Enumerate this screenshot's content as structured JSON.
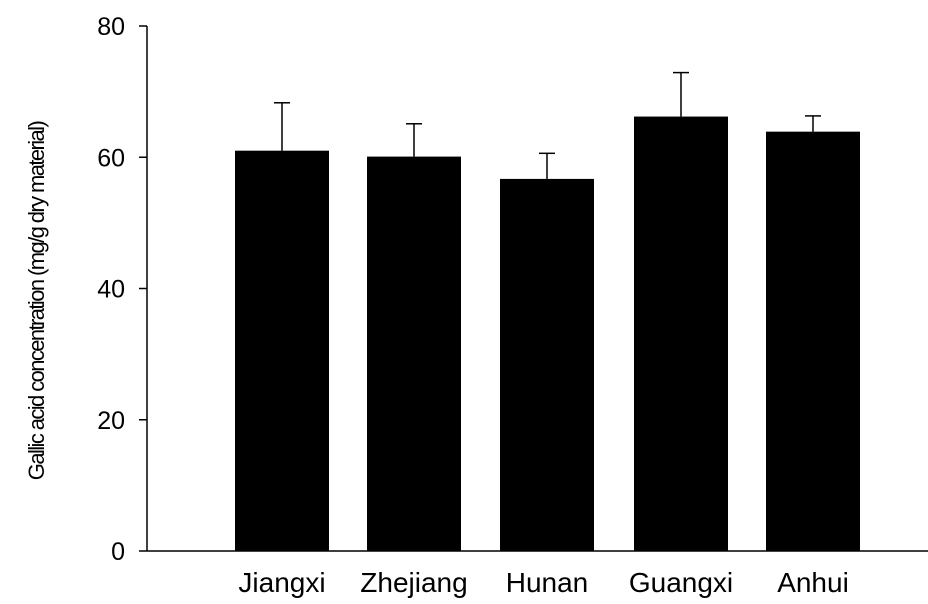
{
  "chart_data": {
    "type": "bar",
    "title": "",
    "xlabel": "",
    "ylabel": "Gallic acid concentration (mg/g dry material)",
    "categories": [
      "Jiangxi",
      "Zhejiang",
      "Hunan",
      "Guangxi",
      "Anhui"
    ],
    "values": [
      61.0,
      60.1,
      56.7,
      66.2,
      63.9
    ],
    "error": [
      7.3,
      5.0,
      3.9,
      6.7,
      2.4
    ],
    "ylim": [
      0,
      80
    ],
    "yticks": [
      0,
      20,
      40,
      60,
      80
    ],
    "ytick_labels": [
      "0",
      "20",
      "40",
      "60",
      "80"
    ],
    "grid": false,
    "legend": "none",
    "bar_color": "#000000",
    "axis_color": "#000000",
    "background": "#ffffff"
  }
}
